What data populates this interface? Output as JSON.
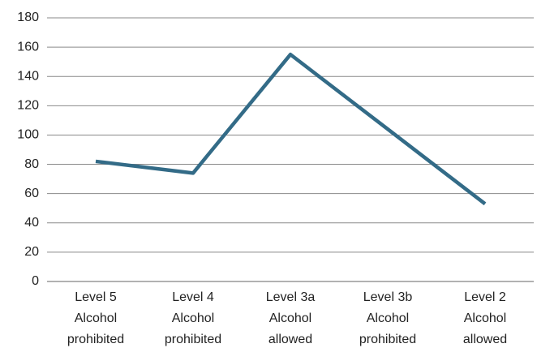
{
  "chart_data": {
    "type": "line",
    "categories": [
      [
        "Level 5",
        "Alcohol",
        "prohibited"
      ],
      [
        "Level 4",
        "Alcohol",
        "prohibited"
      ],
      [
        "Level 3a",
        "Alcohol",
        "allowed"
      ],
      [
        "Level 3b",
        "Alcohol",
        "prohibited"
      ],
      [
        "Level 2",
        "Alcohol",
        "allowed"
      ]
    ],
    "values": [
      82,
      74,
      155,
      104,
      53
    ],
    "color": "#336b87",
    "ylim": [
      0,
      180
    ],
    "yticks": [
      0,
      20,
      40,
      60,
      80,
      100,
      120,
      140,
      160,
      180
    ],
    "grid": true
  }
}
